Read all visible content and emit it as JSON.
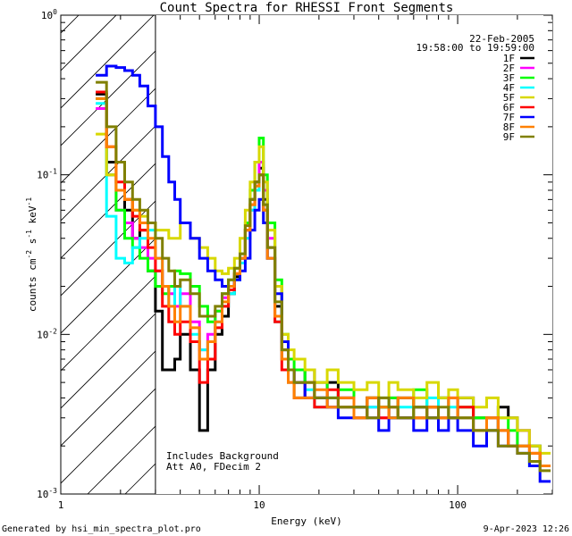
{
  "footer": {
    "generated_by": "Generated by hsi_min_spectra_plot.pro",
    "timestamp": "9-Apr-2023 12:26"
  },
  "chart_data": {
    "type": "line",
    "title": "Count Spectra for RHESSI Front Segments",
    "xlabel": "Energy (keV)",
    "ylabel_parts": [
      "counts cm",
      "-2",
      " s",
      "-1",
      " keV",
      "-1"
    ],
    "xscale": "log",
    "yscale": "log",
    "xlim": [
      1,
      300
    ],
    "ylim": [
      0.001,
      1
    ],
    "x_ticks": [
      {
        "value": 1,
        "label": "1"
      },
      {
        "value": 10,
        "label": "10"
      },
      {
        "value": 100,
        "label": "100"
      }
    ],
    "y_ticks": [
      {
        "value": 0.001,
        "base": "10",
        "exp": "-3"
      },
      {
        "value": 0.01,
        "base": "10",
        "exp": "-2"
      },
      {
        "value": 0.1,
        "base": "10",
        "exp": "-1"
      },
      {
        "value": 1,
        "base": "10",
        "exp": "0"
      }
    ],
    "date": "22-Feb-2005",
    "time_range": "19:58:00 to 19:59:00",
    "annotations": [
      "Includes Background",
      "Att A0, FDecim 2"
    ],
    "hatched_region": {
      "x_from": 1,
      "x_to": 3
    },
    "legend_position": "top-right",
    "energy_bins_keV": [
      1.5,
      1.7,
      1.9,
      2.1,
      2.3,
      2.5,
      2.75,
      3.0,
      3.25,
      3.5,
      3.75,
      4.0,
      4.5,
      5.0,
      5.5,
      6.0,
      6.5,
      7.0,
      7.5,
      8.0,
      8.5,
      9.0,
      9.5,
      10.0,
      10.5,
      11.0,
      12.0,
      13.0,
      14.0,
      15.0,
      17.0,
      19.0,
      22.0,
      25.0,
      30.0,
      35.0,
      40.0,
      45.0,
      50.0,
      60.0,
      70.0,
      80.0,
      90.0,
      100.0,
      120.0,
      140.0,
      160.0,
      180.0,
      200.0,
      230.0,
      260.0
    ],
    "series": [
      {
        "name": "1F",
        "color": "#000000",
        "values": [
          0.32,
          0.12,
          0.12,
          0.06,
          0.04,
          0.045,
          0.025,
          0.014,
          0.006,
          0.006,
          0.007,
          0.01,
          0.006,
          0.0025,
          0.006,
          0.01,
          0.013,
          0.018,
          0.023,
          0.03,
          0.045,
          0.07,
          0.09,
          0.11,
          0.07,
          0.035,
          0.015,
          0.008,
          0.006,
          0.005,
          0.006,
          0.004,
          0.005,
          0.004,
          0.003,
          0.004,
          0.0035,
          0.003,
          0.004,
          0.0035,
          0.003,
          0.004,
          0.003,
          0.004,
          0.003,
          0.0025,
          0.0035,
          0.003,
          0.0025,
          0.002,
          0.0015
        ]
      },
      {
        "name": "2F",
        "color": "#ff00ff",
        "values": [
          0.26,
          0.1,
          0.06,
          0.05,
          0.04,
          0.035,
          0.03,
          0.025,
          0.02,
          0.018,
          0.015,
          0.018,
          0.012,
          0.008,
          0.01,
          0.014,
          0.017,
          0.02,
          0.024,
          0.03,
          0.04,
          0.06,
          0.085,
          0.12,
          0.08,
          0.04,
          0.02,
          0.009,
          0.006,
          0.005,
          0.004,
          0.005,
          0.0035,
          0.004,
          0.003,
          0.0035,
          0.003,
          0.004,
          0.003,
          0.003,
          0.0035,
          0.003,
          0.004,
          0.003,
          0.0025,
          0.003,
          0.0025,
          0.002,
          0.0025,
          0.002,
          0.0015
        ]
      },
      {
        "name": "3F",
        "color": "#00ff00",
        "values": [
          0.3,
          0.1,
          0.06,
          0.04,
          0.035,
          0.03,
          0.025,
          0.02,
          0.018,
          0.02,
          0.025,
          0.024,
          0.02,
          0.015,
          0.012,
          0.014,
          0.018,
          0.022,
          0.026,
          0.032,
          0.05,
          0.08,
          0.12,
          0.17,
          0.1,
          0.05,
          0.022,
          0.01,
          0.007,
          0.006,
          0.005,
          0.005,
          0.004,
          0.0045,
          0.0035,
          0.004,
          0.0035,
          0.004,
          0.003,
          0.0045,
          0.0035,
          0.004,
          0.003,
          0.0035,
          0.003,
          0.0025,
          0.003,
          0.0025,
          0.002,
          0.002,
          0.0015
        ]
      },
      {
        "name": "4F",
        "color": "#00ffff",
        "values": [
          0.28,
          0.055,
          0.03,
          0.028,
          0.035,
          0.04,
          0.045,
          0.03,
          0.02,
          0.015,
          0.02,
          0.015,
          0.01,
          0.008,
          0.009,
          0.012,
          0.015,
          0.018,
          0.022,
          0.028,
          0.04,
          0.06,
          0.08,
          0.1,
          0.065,
          0.03,
          0.012,
          0.007,
          0.005,
          0.004,
          0.0045,
          0.0035,
          0.004,
          0.0035,
          0.003,
          0.0035,
          0.004,
          0.003,
          0.0035,
          0.003,
          0.004,
          0.003,
          0.0035,
          0.003,
          0.0025,
          0.003,
          0.0025,
          0.002,
          0.002,
          0.0015,
          0.0015
        ]
      },
      {
        "name": "5F",
        "color": "#d8d800",
        "values": [
          0.18,
          0.1,
          0.08,
          0.07,
          0.06,
          0.055,
          0.05,
          0.045,
          0.045,
          0.04,
          0.04,
          0.05,
          0.04,
          0.035,
          0.03,
          0.025,
          0.024,
          0.026,
          0.03,
          0.04,
          0.06,
          0.09,
          0.12,
          0.15,
          0.09,
          0.045,
          0.02,
          0.01,
          0.008,
          0.007,
          0.006,
          0.005,
          0.006,
          0.005,
          0.0045,
          0.005,
          0.004,
          0.005,
          0.0045,
          0.004,
          0.005,
          0.004,
          0.0045,
          0.004,
          0.0035,
          0.004,
          0.003,
          0.003,
          0.0025,
          0.002,
          0.0018
        ]
      },
      {
        "name": "6F",
        "color": "#ff0000",
        "values": [
          0.33,
          0.15,
          0.09,
          0.07,
          0.055,
          0.045,
          0.035,
          0.025,
          0.015,
          0.012,
          0.01,
          0.012,
          0.009,
          0.005,
          0.007,
          0.011,
          0.015,
          0.019,
          0.024,
          0.03,
          0.045,
          0.065,
          0.09,
          0.1,
          0.06,
          0.03,
          0.012,
          0.006,
          0.005,
          0.004,
          0.005,
          0.0035,
          0.0045,
          0.0035,
          0.003,
          0.004,
          0.003,
          0.0035,
          0.003,
          0.003,
          0.0035,
          0.003,
          0.003,
          0.0035,
          0.0025,
          0.003,
          0.0025,
          0.002,
          0.002,
          0.0018,
          0.0015
        ]
      },
      {
        "name": "7F",
        "color": "#0000ff",
        "values": [
          0.42,
          0.48,
          0.47,
          0.45,
          0.42,
          0.36,
          0.27,
          0.2,
          0.13,
          0.09,
          0.07,
          0.05,
          0.04,
          0.03,
          0.025,
          0.022,
          0.02,
          0.02,
          0.022,
          0.025,
          0.03,
          0.045,
          0.06,
          0.07,
          0.05,
          0.03,
          0.018,
          0.009,
          0.006,
          0.005,
          0.004,
          0.004,
          0.0035,
          0.003,
          0.0035,
          0.003,
          0.0025,
          0.003,
          0.003,
          0.0025,
          0.003,
          0.0025,
          0.003,
          0.0025,
          0.002,
          0.0025,
          0.002,
          0.002,
          0.0018,
          0.0015,
          0.0012
        ]
      },
      {
        "name": "8F",
        "color": "#ff8000",
        "values": [
          0.3,
          0.15,
          0.08,
          0.07,
          0.06,
          0.05,
          0.04,
          0.03,
          0.02,
          0.015,
          0.012,
          0.015,
          0.011,
          0.007,
          0.009,
          0.012,
          0.016,
          0.02,
          0.024,
          0.03,
          0.045,
          0.065,
          0.085,
          0.1,
          0.06,
          0.03,
          0.013,
          0.007,
          0.005,
          0.004,
          0.004,
          0.0045,
          0.0035,
          0.004,
          0.003,
          0.004,
          0.0035,
          0.003,
          0.004,
          0.003,
          0.0035,
          0.003,
          0.004,
          0.003,
          0.0025,
          0.003,
          0.0025,
          0.002,
          0.002,
          0.0018,
          0.0015
        ]
      },
      {
        "name": "9F",
        "color": "#808000",
        "values": [
          0.38,
          0.2,
          0.12,
          0.09,
          0.07,
          0.06,
          0.05,
          0.04,
          0.03,
          0.025,
          0.02,
          0.022,
          0.018,
          0.013,
          0.013,
          0.015,
          0.018,
          0.022,
          0.026,
          0.032,
          0.048,
          0.07,
          0.09,
          0.1,
          0.065,
          0.035,
          0.016,
          0.008,
          0.006,
          0.005,
          0.005,
          0.004,
          0.004,
          0.0035,
          0.0035,
          0.003,
          0.004,
          0.0035,
          0.003,
          0.0035,
          0.003,
          0.0035,
          0.003,
          0.003,
          0.0025,
          0.0025,
          0.002,
          0.002,
          0.0018,
          0.0016,
          0.0014
        ]
      }
    ]
  }
}
